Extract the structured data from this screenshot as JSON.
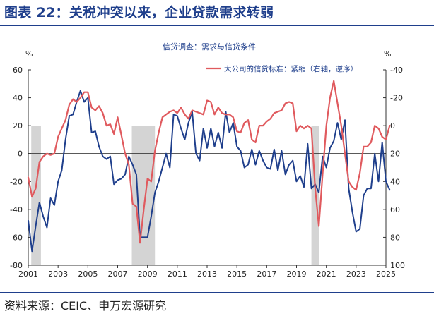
{
  "header": {
    "title": "图表 22：关税冲突以来，企业贷款需求转弱"
  },
  "footer": {
    "source": "资料来源：CEIC、申万宏源研究"
  },
  "chart_data": {
    "type": "line",
    "title": "信贷调查：需求与信贷条件",
    "y_left": {
      "label": "%",
      "range": [
        -80,
        60
      ],
      "ticks": [
        60,
        40,
        20,
        0,
        -20,
        -40,
        -60,
        -80
      ]
    },
    "y_right": {
      "label": "%",
      "range": [
        -40,
        100
      ],
      "inverted": true,
      "ticks": [
        -40,
        -20,
        0,
        20,
        40,
        60,
        80,
        100
      ]
    },
    "x_ticks": [
      2001,
      2003,
      2005,
      2007,
      2009,
      2011,
      2013,
      2015,
      2017,
      2019,
      2021,
      2023,
      2025
    ],
    "x_range": [
      2001,
      2025
    ],
    "colors": {
      "demand": "#1f3f8c",
      "standards": "#e05a5e",
      "recession": "#d4d4d4"
    },
    "recessions": [
      [
        2001.2,
        2001.85
      ],
      [
        2007.95,
        2009.5
      ],
      [
        2020.0,
        2020.5
      ]
    ],
    "series": [
      {
        "key": "demand",
        "name": "",
        "axis": "left",
        "points": [
          [
            2001.0,
            -48
          ],
          [
            2001.25,
            -70
          ],
          [
            2001.5,
            -52
          ],
          [
            2001.75,
            -35
          ],
          [
            2002.0,
            -45
          ],
          [
            2002.25,
            -53
          ],
          [
            2002.5,
            -32
          ],
          [
            2002.75,
            -37
          ],
          [
            2003.0,
            -20
          ],
          [
            2003.25,
            -12
          ],
          [
            2003.5,
            10
          ],
          [
            2003.75,
            27
          ],
          [
            2004.0,
            28
          ],
          [
            2004.25,
            37
          ],
          [
            2004.5,
            45
          ],
          [
            2004.75,
            37
          ],
          [
            2005.0,
            40
          ],
          [
            2005.25,
            15
          ],
          [
            2005.5,
            16
          ],
          [
            2005.75,
            5
          ],
          [
            2006.0,
            -2
          ],
          [
            2006.25,
            -4
          ],
          [
            2006.5,
            -2
          ],
          [
            2006.75,
            -22
          ],
          [
            2007.0,
            -19
          ],
          [
            2007.25,
            -18
          ],
          [
            2007.5,
            -15
          ],
          [
            2007.75,
            -2
          ],
          [
            2008.0,
            -8
          ],
          [
            2008.25,
            -15
          ],
          [
            2008.5,
            -60
          ],
          [
            2008.75,
            -60
          ],
          [
            2009.0,
            -60
          ],
          [
            2009.25,
            -45
          ],
          [
            2009.5,
            -28
          ],
          [
            2009.75,
            -20
          ],
          [
            2010.0,
            -10
          ],
          [
            2010.25,
            0
          ],
          [
            2010.5,
            -10
          ],
          [
            2010.75,
            28
          ],
          [
            2011.0,
            27
          ],
          [
            2011.25,
            18
          ],
          [
            2011.5,
            10
          ],
          [
            2011.75,
            22
          ],
          [
            2012.0,
            30
          ],
          [
            2012.25,
            0
          ],
          [
            2012.5,
            -5
          ],
          [
            2012.75,
            18
          ],
          [
            2013.0,
            4
          ],
          [
            2013.25,
            18
          ],
          [
            2013.5,
            5
          ],
          [
            2013.75,
            15
          ],
          [
            2014.0,
            4
          ],
          [
            2014.25,
            30
          ],
          [
            2014.5,
            15
          ],
          [
            2014.75,
            22
          ],
          [
            2015.0,
            5
          ],
          [
            2015.25,
            2
          ],
          [
            2015.5,
            -10
          ],
          [
            2015.75,
            -8
          ],
          [
            2016.0,
            3
          ],
          [
            2016.25,
            -8
          ],
          [
            2016.5,
            2
          ],
          [
            2016.75,
            -5
          ],
          [
            2017.0,
            -10
          ],
          [
            2017.25,
            -11
          ],
          [
            2017.5,
            3
          ],
          [
            2017.75,
            -12
          ],
          [
            2018.0,
            2
          ],
          [
            2018.25,
            -15
          ],
          [
            2018.5,
            -8
          ],
          [
            2018.75,
            -5
          ],
          [
            2019.0,
            -20
          ],
          [
            2019.25,
            -16
          ],
          [
            2019.5,
            -24
          ],
          [
            2019.75,
            7
          ],
          [
            2020.0,
            -25
          ],
          [
            2020.25,
            -22
          ],
          [
            2020.5,
            -28
          ],
          [
            2020.75,
            -2
          ],
          [
            2021.0,
            -10
          ],
          [
            2021.25,
            4
          ],
          [
            2021.5,
            9
          ],
          [
            2021.75,
            22
          ],
          [
            2022.0,
            10
          ],
          [
            2022.25,
            24
          ],
          [
            2022.5,
            -25
          ],
          [
            2022.75,
            -42
          ],
          [
            2023.0,
            -56
          ],
          [
            2023.25,
            -54
          ],
          [
            2023.5,
            -30
          ],
          [
            2023.75,
            -25
          ],
          [
            2024.0,
            -25
          ],
          [
            2024.25,
            0
          ],
          [
            2024.5,
            -20
          ],
          [
            2024.75,
            8
          ],
          [
            2025.0,
            -20
          ],
          [
            2025.25,
            -26
          ]
        ]
      },
      {
        "key": "standards",
        "name": "大公司的信贷标准：紧缩（右轴，逆序）",
        "axis": "right",
        "points": [
          [
            2001.0,
            37
          ],
          [
            2001.25,
            51
          ],
          [
            2001.5,
            45
          ],
          [
            2001.75,
            26
          ],
          [
            2002.0,
            22
          ],
          [
            2002.25,
            20
          ],
          [
            2002.5,
            21
          ],
          [
            2002.75,
            20
          ],
          [
            2003.0,
            8
          ],
          [
            2003.25,
            2
          ],
          [
            2003.5,
            -4
          ],
          [
            2003.75,
            -15
          ],
          [
            2004.0,
            -19
          ],
          [
            2004.25,
            -17
          ],
          [
            2004.5,
            -20
          ],
          [
            2004.75,
            -24
          ],
          [
            2005.0,
            -24
          ],
          [
            2005.25,
            -13
          ],
          [
            2005.5,
            -11
          ],
          [
            2005.75,
            -14
          ],
          [
            2006.0,
            -9
          ],
          [
            2006.25,
            0
          ],
          [
            2006.5,
            -1
          ],
          [
            2006.75,
            6
          ],
          [
            2007.0,
            -6
          ],
          [
            2007.25,
            7
          ],
          [
            2007.5,
            20
          ],
          [
            2007.75,
            28
          ],
          [
            2008.0,
            56
          ],
          [
            2008.25,
            58
          ],
          [
            2008.5,
            84
          ],
          [
            2008.75,
            60
          ],
          [
            2009.0,
            38
          ],
          [
            2009.25,
            40
          ],
          [
            2009.5,
            18
          ],
          [
            2009.75,
            5
          ],
          [
            2010.0,
            -6
          ],
          [
            2010.25,
            -8
          ],
          [
            2010.5,
            -10
          ],
          [
            2010.75,
            -11
          ],
          [
            2011.0,
            -9
          ],
          [
            2011.25,
            -13
          ],
          [
            2011.5,
            -8
          ],
          [
            2011.75,
            -5
          ],
          [
            2012.0,
            -11
          ],
          [
            2012.25,
            -10
          ],
          [
            2012.5,
            -9
          ],
          [
            2012.75,
            -8
          ],
          [
            2013.0,
            -18
          ],
          [
            2013.25,
            -17
          ],
          [
            2013.5,
            -8
          ],
          [
            2013.75,
            -13
          ],
          [
            2014.0,
            -9
          ],
          [
            2014.25,
            -8
          ],
          [
            2014.5,
            -8
          ],
          [
            2014.75,
            -6
          ],
          [
            2015.0,
            4
          ],
          [
            2015.25,
            5
          ],
          [
            2015.5,
            -2
          ],
          [
            2015.75,
            -4
          ],
          [
            2016.0,
            10
          ],
          [
            2016.25,
            12
          ],
          [
            2016.5,
            0
          ],
          [
            2016.75,
            0
          ],
          [
            2017.0,
            -3
          ],
          [
            2017.25,
            -5
          ],
          [
            2017.5,
            -9
          ],
          [
            2017.75,
            -10
          ],
          [
            2018.0,
            -11
          ],
          [
            2018.25,
            -16
          ],
          [
            2018.5,
            -17
          ],
          [
            2018.75,
            -16
          ],
          [
            2019.0,
            4
          ],
          [
            2019.25,
            0
          ],
          [
            2019.5,
            2
          ],
          [
            2019.75,
            0
          ],
          [
            2020.0,
            2
          ],
          [
            2020.25,
            45
          ],
          [
            2020.5,
            72
          ],
          [
            2020.75,
            35
          ],
          [
            2021.0,
            0
          ],
          [
            2021.25,
            -20
          ],
          [
            2021.5,
            -32
          ],
          [
            2021.75,
            -16
          ],
          [
            2022.0,
            0
          ],
          [
            2022.25,
            20
          ],
          [
            2022.5,
            40
          ],
          [
            2022.75,
            44
          ],
          [
            2023.0,
            46
          ],
          [
            2023.25,
            34
          ],
          [
            2023.5,
            15
          ],
          [
            2023.75,
            15
          ],
          [
            2024.0,
            12
          ],
          [
            2024.25,
            0
          ],
          [
            2024.5,
            2
          ],
          [
            2024.75,
            8
          ],
          [
            2025.0,
            10
          ],
          [
            2025.25,
            0
          ]
        ]
      }
    ]
  }
}
